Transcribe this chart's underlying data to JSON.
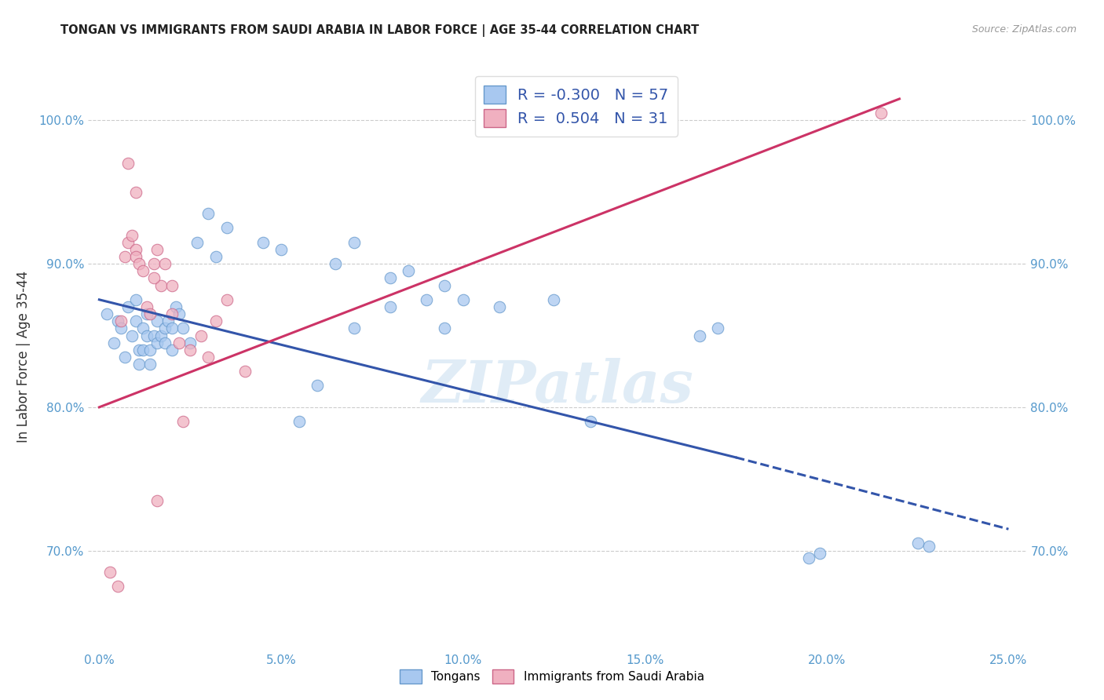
{
  "title": "TONGAN VS IMMIGRANTS FROM SAUDI ARABIA IN LABOR FORCE | AGE 35-44 CORRELATION CHART",
  "source": "Source: ZipAtlas.com",
  "ylabel": "In Labor Force | Age 35-44",
  "xlabel_vals": [
    0.0,
    5.0,
    10.0,
    15.0,
    20.0,
    25.0
  ],
  "ylabel_vals": [
    70.0,
    80.0,
    90.0,
    100.0
  ],
  "xlim": [
    -0.3,
    25.5
  ],
  "ylim": [
    63.0,
    104.0
  ],
  "legend_blue_r": "-0.300",
  "legend_blue_n": "57",
  "legend_pink_r": "0.504",
  "legend_pink_n": "31",
  "blue_scatter_color": "#a8c8f0",
  "blue_edge_color": "#6699cc",
  "pink_scatter_color": "#f0b0c0",
  "pink_edge_color": "#cc6688",
  "blue_line_color": "#3355aa",
  "pink_line_color": "#cc3366",
  "watermark": "ZIPatlas",
  "blue_scatter_x": [
    0.2,
    0.4,
    0.5,
    0.6,
    0.7,
    0.8,
    0.9,
    1.0,
    1.0,
    1.1,
    1.1,
    1.2,
    1.2,
    1.3,
    1.3,
    1.4,
    1.4,
    1.5,
    1.6,
    1.6,
    1.7,
    1.8,
    1.8,
    1.9,
    2.0,
    2.0,
    2.1,
    2.2,
    2.3,
    2.5,
    2.7,
    3.0,
    3.2,
    3.5,
    4.5,
    5.0,
    5.5,
    6.0,
    6.5,
    7.0,
    8.0,
    8.5,
    9.0,
    9.5,
    10.0,
    11.0,
    12.5,
    13.5,
    16.5,
    17.0,
    19.5,
    19.8,
    22.5,
    22.8,
    7.0,
    8.0,
    9.5
  ],
  "blue_scatter_y": [
    86.5,
    84.5,
    86.0,
    85.5,
    83.5,
    87.0,
    85.0,
    87.5,
    86.0,
    84.0,
    83.0,
    85.5,
    84.0,
    86.5,
    85.0,
    84.0,
    83.0,
    85.0,
    84.5,
    86.0,
    85.0,
    84.5,
    85.5,
    86.0,
    85.5,
    84.0,
    87.0,
    86.5,
    85.5,
    84.5,
    91.5,
    93.5,
    90.5,
    92.5,
    91.5,
    91.0,
    79.0,
    81.5,
    90.0,
    91.5,
    89.0,
    89.5,
    87.5,
    85.5,
    87.5,
    87.0,
    87.5,
    79.0,
    85.0,
    85.5,
    69.5,
    69.8,
    70.5,
    70.3,
    85.5,
    87.0,
    88.5
  ],
  "pink_scatter_x": [
    0.3,
    0.5,
    0.6,
    0.7,
    0.8,
    0.9,
    1.0,
    1.0,
    1.1,
    1.2,
    1.3,
    1.4,
    1.5,
    1.6,
    1.7,
    1.8,
    2.0,
    2.2,
    2.5,
    2.8,
    3.2,
    3.5,
    4.0,
    0.8,
    1.0,
    1.5,
    2.0,
    3.0,
    21.5,
    1.6,
    2.3
  ],
  "pink_scatter_y": [
    68.5,
    67.5,
    86.0,
    90.5,
    91.5,
    92.0,
    91.0,
    90.5,
    90.0,
    89.5,
    87.0,
    86.5,
    90.0,
    91.0,
    88.5,
    90.0,
    88.5,
    84.5,
    84.0,
    85.0,
    86.0,
    87.5,
    82.5,
    97.0,
    95.0,
    89.0,
    86.5,
    83.5,
    100.5,
    73.5,
    79.0
  ],
  "blue_line_x0": 0.0,
  "blue_line_y0": 87.5,
  "blue_line_x1": 17.5,
  "blue_line_y1": 76.5,
  "blue_dash_x0": 17.5,
  "blue_dash_y0": 76.5,
  "blue_dash_x1": 25.0,
  "blue_dash_y1": 71.5,
  "pink_line_x0": 0.0,
  "pink_line_y0": 80.0,
  "pink_line_x1": 22.0,
  "pink_line_y1": 101.5
}
